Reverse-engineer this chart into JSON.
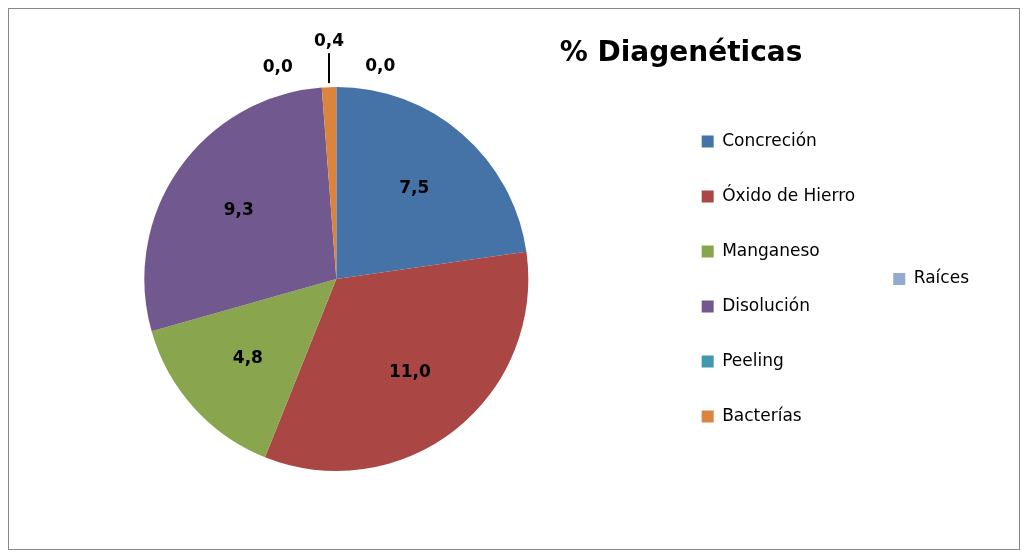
{
  "chart_data": {
    "type": "pie",
    "title": "% Diagenéticas",
    "categories": [
      "Concreción",
      "Óxido de Hierro",
      "Manganeso",
      "Disolución",
      "Peeling",
      "Bacterías",
      "Raíces"
    ],
    "values": [
      7.5,
      11.0,
      4.8,
      9.3,
      0.0,
      0.4,
      0.0
    ],
    "colors": [
      "#4572a7",
      "#aa4643",
      "#89a54e",
      "#71588f",
      "#4198af",
      "#db843d",
      "#93a9cf"
    ],
    "value_labels": [
      "7,5",
      "11,0",
      "4,8",
      "9,3",
      "0,0",
      "0,4",
      "0,0"
    ],
    "legend": "right"
  }
}
